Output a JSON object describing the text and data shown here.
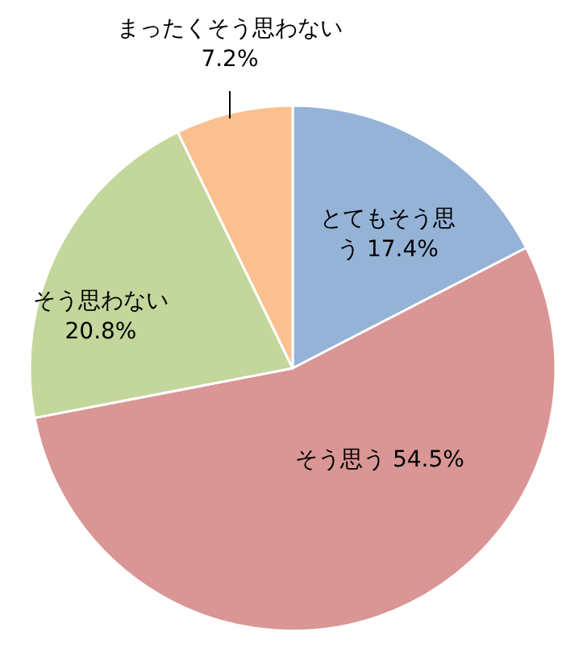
{
  "chart_data": {
    "type": "pie",
    "categories": [
      "とてもそう思う",
      "そう思う",
      "そう思わない",
      "まったくそう思わない"
    ],
    "values": [
      17.4,
      54.5,
      20.8,
      7.2
    ],
    "colors": [
      "#95b3d7",
      "#d99694",
      "#c3d69b",
      "#fac090"
    ],
    "value_labels": [
      "17.4%",
      "54.5%",
      "20.8%",
      "7.2%"
    ]
  }
}
